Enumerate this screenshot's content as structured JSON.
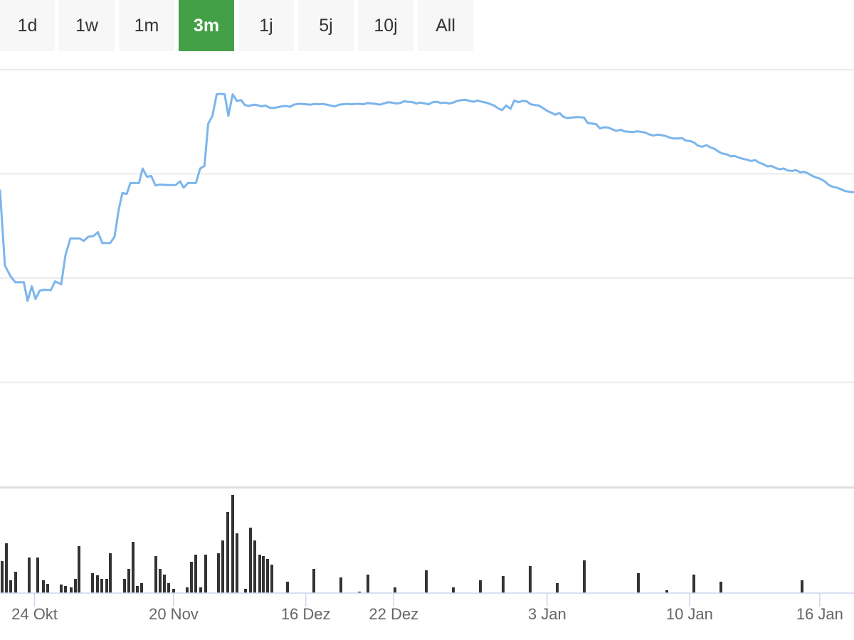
{
  "range_selector": {
    "buttons": [
      "1d",
      "1w",
      "1m",
      "3m",
      "1j",
      "5j",
      "10j",
      "All"
    ],
    "active": "3m",
    "active_color": "#43a047"
  },
  "chart_data": {
    "type": "line",
    "line_color": "#7cb5ec",
    "volume_color": "#333333",
    "grid": true,
    "price_axis_labels_shown": false,
    "x_ticks": [
      "24 Okt",
      "20 Nov",
      "16 Dez",
      "22 Dez",
      "3 Jan",
      "10 Jan",
      "16 Jan"
    ],
    "x_tick_positions": [
      0.64,
      23.36,
      44.95,
      59.32,
      84.37,
      107.63,
      128.91
    ],
    "x_range": [
      -5,
      134.5
    ],
    "price_range": [
      0,
      100
    ],
    "price_series": [
      [
        -5,
        71
      ],
      [
        -4.2,
        53
      ],
      [
        -3.3,
        50.5
      ],
      [
        -2.5,
        49
      ],
      [
        -1.8,
        49
      ],
      [
        -1.1,
        49
      ],
      [
        -0.5,
        44.5
      ],
      [
        0.2,
        48
      ],
      [
        0.8,
        45
      ],
      [
        1.5,
        47
      ],
      [
        2.3,
        47.2
      ],
      [
        3.3,
        47.1
      ],
      [
        4.0,
        49.2
      ],
      [
        5.0,
        48.5
      ],
      [
        5.7,
        55.5
      ],
      [
        6.5,
        59.5
      ],
      [
        7.2,
        59.5
      ],
      [
        8.0,
        59.5
      ],
      [
        8.7,
        58.9
      ],
      [
        9.4,
        59.9
      ],
      [
        10.3,
        60.1
      ],
      [
        11.0,
        61
      ],
      [
        11.7,
        58.4
      ],
      [
        12.3,
        58.4
      ],
      [
        13.0,
        58.4
      ],
      [
        13.7,
        59.9
      ],
      [
        14.4,
        66.5
      ],
      [
        15.0,
        70.4
      ],
      [
        15.7,
        70.2
      ],
      [
        16.3,
        72.8
      ],
      [
        17.0,
        72.8
      ],
      [
        17.7,
        72.8
      ],
      [
        18.3,
        76.3
      ],
      [
        19.0,
        74.3
      ],
      [
        19.7,
        74.5
      ],
      [
        20.4,
        72.2
      ],
      [
        21.0,
        72.4
      ],
      [
        21.7,
        72.4
      ],
      [
        22.4,
        72.3
      ],
      [
        23.0,
        72.3
      ],
      [
        23.7,
        72.3
      ],
      [
        24.4,
        73.2
      ],
      [
        25.0,
        71.7
      ],
      [
        25.7,
        72.8
      ],
      [
        26.4,
        72.8
      ],
      [
        27.0,
        72.8
      ],
      [
        27.7,
        76.3
      ],
      [
        28.4,
        76.9
      ],
      [
        29.0,
        87
      ],
      [
        29.7,
        88.9
      ],
      [
        30.4,
        94.1
      ],
      [
        31.0,
        94.2
      ],
      [
        31.7,
        94.1
      ],
      [
        32.3,
        88.9
      ],
      [
        33.0,
        94.1
      ],
      [
        33.7,
        92.5
      ],
      [
        34.4,
        92.7
      ],
      [
        35.0,
        91.5
      ],
      [
        35.7,
        91.3
      ],
      [
        36.4,
        91.6
      ],
      [
        37.0,
        91.5
      ],
      [
        37.7,
        91.2
      ],
      [
        38.4,
        91.4
      ],
      [
        39.0,
        90.9
      ],
      [
        39.7,
        90.8
      ],
      [
        40.4,
        91
      ],
      [
        41.0,
        91.2
      ],
      [
        41.7,
        91.3
      ],
      [
        42.4,
        91.1
      ],
      [
        43.0,
        91.6
      ],
      [
        43.7,
        91.8
      ],
      [
        44.4,
        91.8
      ],
      [
        45.0,
        91.7
      ],
      [
        45.7,
        91.6
      ],
      [
        46.4,
        91.8
      ],
      [
        47.0,
        91.7
      ],
      [
        47.7,
        91.8
      ],
      [
        48.4,
        91.6
      ],
      [
        49.0,
        91.4
      ],
      [
        49.7,
        91.2
      ],
      [
        50.4,
        91.6
      ],
      [
        51.0,
        91.7
      ],
      [
        51.7,
        91.8
      ],
      [
        52.4,
        91.7
      ],
      [
        53.0,
        91.8
      ],
      [
        53.7,
        91.8
      ],
      [
        54.4,
        91.7
      ],
      [
        55.0,
        92
      ],
      [
        55.7,
        91.9
      ],
      [
        56.4,
        91.8
      ],
      [
        57.0,
        91.6
      ],
      [
        57.7,
        91.9
      ],
      [
        58.4,
        92.2
      ],
      [
        59.0,
        92.1
      ],
      [
        59.7,
        91.9
      ],
      [
        60.4,
        92
      ],
      [
        61.0,
        92.4
      ],
      [
        61.7,
        92.3
      ],
      [
        62.4,
        92.2
      ],
      [
        63.0,
        91.9
      ],
      [
        63.7,
        92.1
      ],
      [
        64.4,
        91.9
      ],
      [
        65.0,
        91.7
      ],
      [
        65.7,
        92.2
      ],
      [
        66.4,
        92.3
      ],
      [
        67.0,
        92
      ],
      [
        67.7,
        92.1
      ],
      [
        68.4,
        91.9
      ],
      [
        69.0,
        92.1
      ],
      [
        69.7,
        92.5
      ],
      [
        70.4,
        92.7
      ],
      [
        71.0,
        92.8
      ],
      [
        71.7,
        92.5
      ],
      [
        72.4,
        92.3
      ],
      [
        73.0,
        92.6
      ],
      [
        73.7,
        92.3
      ],
      [
        74.4,
        92.1
      ],
      [
        75.0,
        91.8
      ],
      [
        75.7,
        91.4
      ],
      [
        76.4,
        90.7
      ],
      [
        77.0,
        90.3
      ],
      [
        77.7,
        91.4
      ],
      [
        78.4,
        90.6
      ],
      [
        79.0,
        92.6
      ],
      [
        79.7,
        92.2
      ],
      [
        80.4,
        92.5
      ],
      [
        81.0,
        92.4
      ],
      [
        81.7,
        91.7
      ],
      [
        82.4,
        91.5
      ],
      [
        83.0,
        91.4
      ],
      [
        83.7,
        90.8
      ],
      [
        84.4,
        90.1
      ],
      [
        85.0,
        89.7
      ],
      [
        85.7,
        89.2
      ],
      [
        86.4,
        89.6
      ],
      [
        87.0,
        88.7
      ],
      [
        87.7,
        88.4
      ],
      [
        88.4,
        88.5
      ],
      [
        89.0,
        88.6
      ],
      [
        89.7,
        88.6
      ],
      [
        90.4,
        88.5
      ],
      [
        91.0,
        87.2
      ],
      [
        91.7,
        87.1
      ],
      [
        92.4,
        86.9
      ],
      [
        93.0,
        85.9
      ],
      [
        93.7,
        86.2
      ],
      [
        94.4,
        86.1
      ],
      [
        95.0,
        85.7
      ],
      [
        95.7,
        85.3
      ],
      [
        96.4,
        85.6
      ],
      [
        97.0,
        85.2
      ],
      [
        97.7,
        85.1
      ],
      [
        98.4,
        85
      ],
      [
        99.0,
        85.2
      ],
      [
        99.7,
        85.1
      ],
      [
        100.4,
        84.9
      ],
      [
        101.0,
        84.5
      ],
      [
        101.7,
        84.2
      ],
      [
        102.4,
        84.4
      ],
      [
        103.0,
        84.3
      ],
      [
        103.7,
        84.1
      ],
      [
        104.4,
        83.7
      ],
      [
        105.0,
        83.5
      ],
      [
        105.7,
        83.5
      ],
      [
        106.4,
        83.6
      ],
      [
        107.0,
        83
      ],
      [
        107.7,
        82.9
      ],
      [
        108.4,
        82.5
      ],
      [
        109.0,
        81.8
      ],
      [
        109.7,
        81.5
      ],
      [
        110.4,
        81.9
      ],
      [
        111.0,
        81.4
      ],
      [
        111.7,
        81
      ],
      [
        112.4,
        80.3
      ],
      [
        113.0,
        79.9
      ],
      [
        113.7,
        79.7
      ],
      [
        114.4,
        79.2
      ],
      [
        115.0,
        79.3
      ],
      [
        115.7,
        78.9
      ],
      [
        116.4,
        78.6
      ],
      [
        117.0,
        78.4
      ],
      [
        117.7,
        78.1
      ],
      [
        118.4,
        78.3
      ],
      [
        119.0,
        77.7
      ],
      [
        119.7,
        77.3
      ],
      [
        120.4,
        76.8
      ],
      [
        121.0,
        76.9
      ],
      [
        121.7,
        76.4
      ],
      [
        122.4,
        76.1
      ],
      [
        123.0,
        76.3
      ],
      [
        123.7,
        75.8
      ],
      [
        124.4,
        75.7
      ],
      [
        125.0,
        75.9
      ],
      [
        125.7,
        75.4
      ],
      [
        126.4,
        75.5
      ],
      [
        127.0,
        75.1
      ],
      [
        127.7,
        74.5
      ],
      [
        128.4,
        74.1
      ],
      [
        129.0,
        73.8
      ],
      [
        129.7,
        73.2
      ],
      [
        130.4,
        72.3
      ],
      [
        131.0,
        71.9
      ],
      [
        131.7,
        71.7
      ],
      [
        132.4,
        71.3
      ],
      [
        133.0,
        70.9
      ],
      [
        133.7,
        70.7
      ],
      [
        134.4,
        70.6
      ]
    ]
  }
}
